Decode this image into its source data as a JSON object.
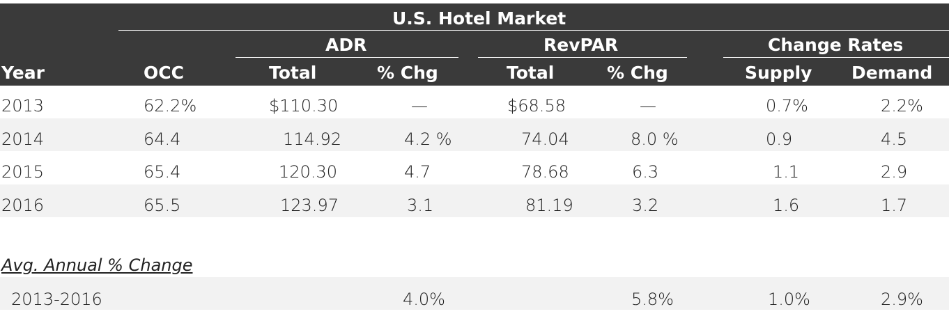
{
  "table": {
    "title": "U.S. Hotel Market",
    "group_headers": {
      "adr": "ADR",
      "revpar": "RevPAR",
      "change_rates": "Change Rates"
    },
    "columns": {
      "year": "Year",
      "occ": "OCC",
      "adr_total": "Total",
      "adr_chg": "% Chg",
      "revpar_total": "Total",
      "revpar_chg": "% Chg",
      "supply": "Supply",
      "demand": "Demand"
    },
    "rows": [
      {
        "year": "2013",
        "occ": "62.2%",
        "adr_total": "$110.30",
        "adr_chg": "—",
        "revpar_total": "$68.58",
        "revpar_chg": "—",
        "supply": "0.7%",
        "demand": "2.2%"
      },
      {
        "year": "2014",
        "occ": "64.4",
        "adr_total": "114.92",
        "adr_chg": "4.2 %",
        "revpar_total": "74.04",
        "revpar_chg": "8.0 %",
        "supply": "0.9",
        "demand": "4.5"
      },
      {
        "year": "2015",
        "occ": "65.4",
        "adr_total": "120.30",
        "adr_chg": "4.7",
        "revpar_total": "78.68",
        "revpar_chg": "6.3",
        "supply": "1.1",
        "demand": "2.9"
      },
      {
        "year": "2016",
        "occ": "65.5",
        "adr_total": "123.97",
        "adr_chg": "3.1",
        "revpar_total": "81.19",
        "revpar_chg": "3.2",
        "supply": "1.6",
        "demand": "1.7"
      }
    ],
    "avg_change": {
      "label": "Avg. Annual % Change",
      "period": "2013-2016",
      "adr_chg": "4.0%",
      "revpar_chg": "5.8%",
      "supply": "1.0%",
      "demand": "2.9%"
    }
  }
}
